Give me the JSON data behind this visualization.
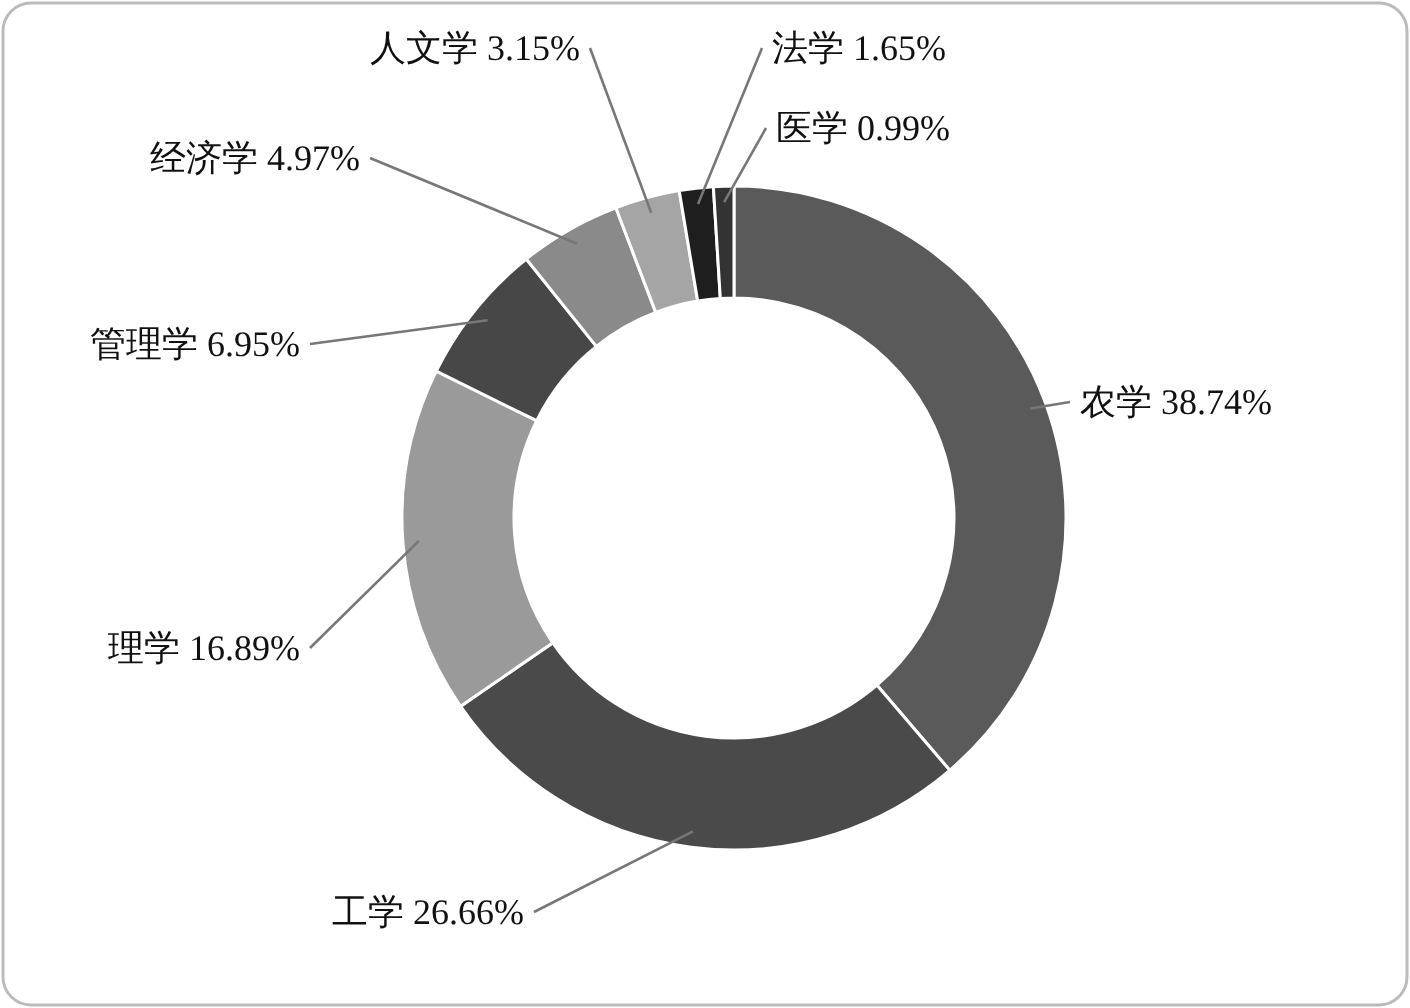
{
  "chart_data": {
    "type": "donut",
    "categories": [
      "农学",
      "工学",
      "理学",
      "管理学",
      "经济学",
      "人文学",
      "法学",
      "医学"
    ],
    "values": [
      38.74,
      26.66,
      16.89,
      6.95,
      4.97,
      3.15,
      1.65,
      0.99
    ],
    "value_labels": [
      "38.74%",
      "26.66%",
      "16.89%",
      "6.95%",
      "4.97%",
      "3.15%",
      "1.65%",
      "0.99%"
    ],
    "colors": [
      "#5a5a5a",
      "#4a4a4a",
      "#9a9a9a",
      "#474747",
      "#8a8a8a",
      "#a5a5a5",
      "#1e1e1e",
      "#333333"
    ],
    "legend": false
  }
}
